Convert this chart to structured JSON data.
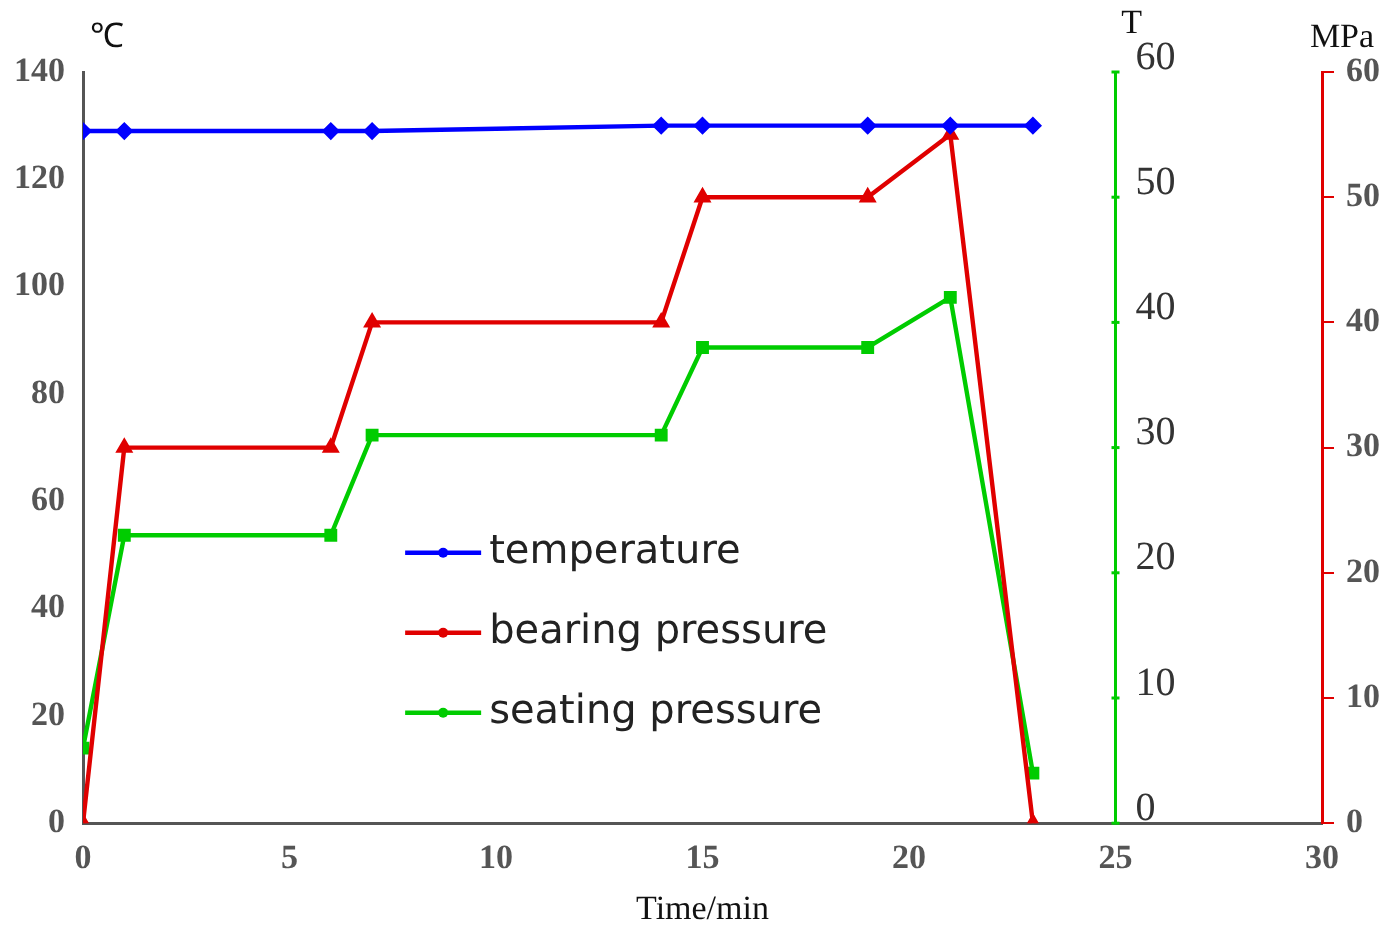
{
  "chart_data": {
    "type": "line",
    "xlabel": "Time/min",
    "ylabel": "℃",
    "y2label": "MPa",
    "y3label": "T",
    "xlim": [
      0,
      30
    ],
    "xticks": [
      0,
      5,
      10,
      15,
      20,
      25,
      30
    ],
    "ylim": [
      0,
      140
    ],
    "yticks": [
      0,
      20,
      40,
      60,
      80,
      100,
      120,
      140
    ],
    "y2lim": [
      0,
      60
    ],
    "y2ticks": [
      0,
      10,
      20,
      30,
      40,
      50,
      60
    ],
    "y3lim": [
      0,
      60
    ],
    "y3ticks": [
      0,
      10,
      20,
      30,
      40,
      50,
      60
    ],
    "legend": "bottom left",
    "grid": false,
    "line_style": "solid",
    "series": [
      {
        "name": "temperature",
        "color": "#0000ff",
        "marker": "diamond",
        "x": [
          0,
          1,
          6,
          7,
          14,
          15,
          19,
          21,
          23
        ],
        "values": [
          129,
          129,
          129,
          129,
          130,
          130,
          130,
          130,
          130
        ]
      },
      {
        "name": "bearing pressure",
        "color": "#e00000",
        "marker": "triangle",
        "axis": "y2",
        "x": [
          0,
          1,
          6,
          7,
          14,
          15,
          19,
          21,
          23
        ],
        "values": [
          0,
          30,
          30,
          40,
          40,
          50,
          50,
          55,
          0
        ]
      },
      {
        "name": "seating pressure",
        "color": "#00cc00",
        "marker": "square",
        "axis": "y3",
        "x": [
          0,
          1,
          6,
          7,
          14,
          15,
          19,
          21,
          23
        ],
        "values": [
          6,
          23,
          23,
          31,
          31,
          38,
          38,
          42,
          4
        ]
      }
    ]
  }
}
